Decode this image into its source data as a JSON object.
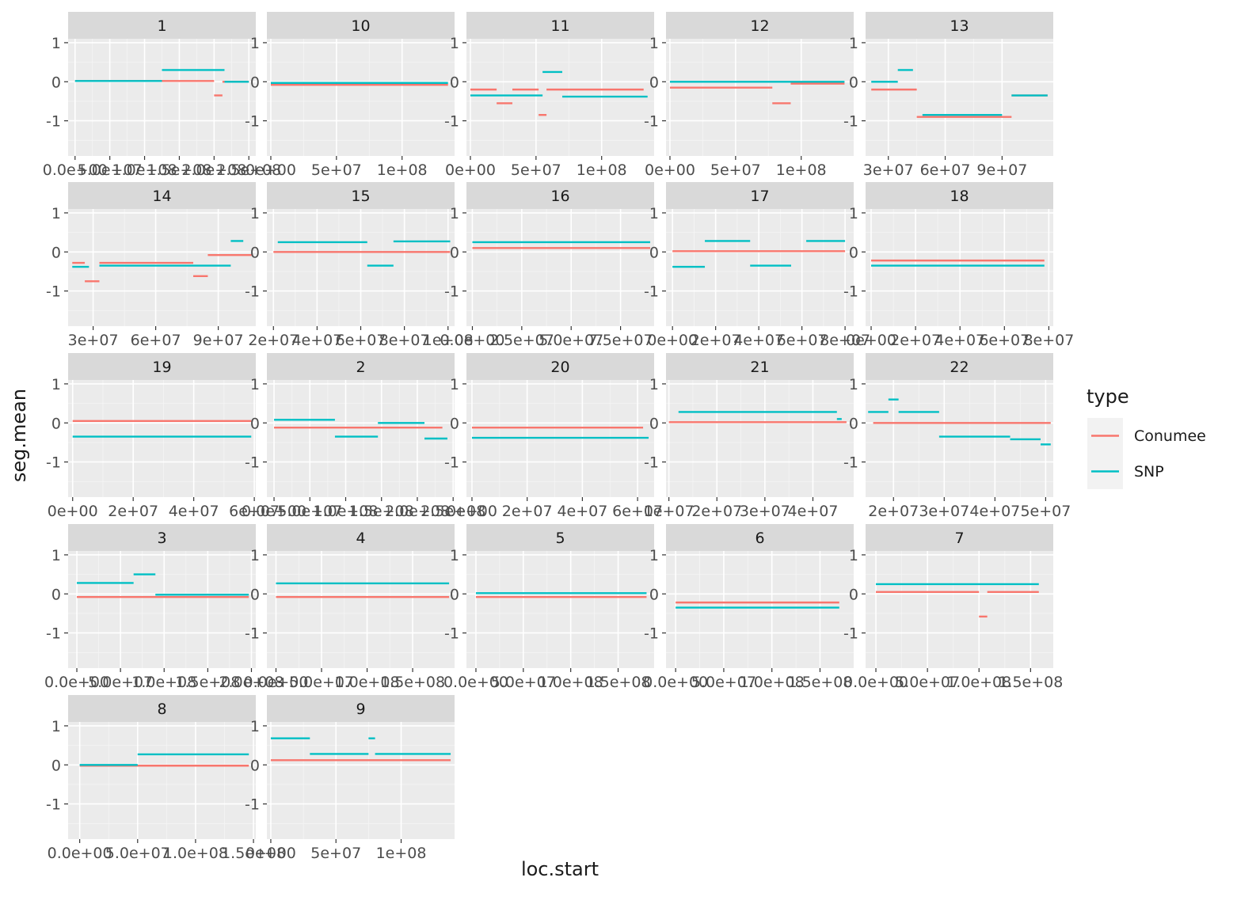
{
  "chart_data": {
    "type": "line",
    "xlabel": "loc.start",
    "ylabel": "seg.mean",
    "ylim": [
      -1.9,
      1.1
    ],
    "y_ticks": [
      1,
      0,
      -1
    ],
    "y_tick_labels": [
      "1",
      "0",
      "-1"
    ],
    "legend": {
      "title": "type",
      "placement": "right",
      "entries": [
        {
          "name": "Conumee",
          "color": "#F8766D"
        },
        {
          "name": "SNP",
          "color": "#00BFC4"
        }
      ]
    },
    "colors": {
      "Conumee": "#F8766D",
      "SNP": "#00BFC4",
      "panel_bg": "#EBEBEB",
      "strip_bg": "#D9D9D9"
    },
    "panels": [
      {
        "label": "1",
        "xlim": [
          -10000000.0,
          260000000.0
        ],
        "ticks": [
          0,
          50000000.0,
          100000000.0,
          150000000.0,
          200000000.0,
          250000000.0
        ],
        "tick_labels": [
          "0.0e+00",
          "5.0e+07",
          "1.0e+08",
          "1.5e+08",
          "2.0e+08",
          "2.5e+08"
        ],
        "series": {
          "Conumee": [
            [
              0,
              200000000.0,
              0.02
            ],
            [
              200000000.0,
              212000000.0,
              -0.35
            ],
            [
              212000000.0,
              250000000.0,
              0.0
            ]
          ],
          "SNP": [
            [
              0,
              125000000.0,
              0.02
            ],
            [
              125000000.0,
              215000000.0,
              0.3
            ],
            [
              215000000.0,
              250000000.0,
              0.0
            ]
          ]
        }
      },
      {
        "label": "10",
        "xlim": [
          -3000000.0,
          140000000.0
        ],
        "ticks": [
          0,
          50000000.0,
          100000000.0
        ],
        "tick_labels": [
          "0e+00",
          "5e+07",
          "1e+08"
        ],
        "series": {
          "Conumee": [
            [
              0,
              135000000.0,
              -0.08
            ]
          ],
          "SNP": [
            [
              0,
              135000000.0,
              -0.03
            ]
          ]
        }
      },
      {
        "label": "11",
        "xlim": [
          -3000000.0,
          140000000.0
        ],
        "ticks": [
          0,
          50000000.0,
          100000000.0
        ],
        "tick_labels": [
          "0e+00",
          "5e+07",
          "1e+08"
        ],
        "series": {
          "Conumee": [
            [
              0,
              20000000.0,
              -0.2
            ],
            [
              20000000.0,
              32000000.0,
              -0.55
            ],
            [
              32000000.0,
              52000000.0,
              -0.2
            ],
            [
              52000000.0,
              58000000.0,
              -0.85
            ],
            [
              58000000.0,
              132000000.0,
              -0.2
            ]
          ],
          "SNP": [
            [
              0,
              55000000.0,
              -0.35
            ],
            [
              55000000.0,
              70000000.0,
              0.25
            ],
            [
              70000000.0,
              135000000.0,
              -0.38
            ]
          ]
        }
      },
      {
        "label": "12",
        "xlim": [
          -3000000.0,
          140000000.0
        ],
        "ticks": [
          0,
          50000000.0,
          100000000.0
        ],
        "tick_labels": [
          "0e+00",
          "5e+07",
          "1e+08"
        ],
        "series": {
          "Conumee": [
            [
              0,
              78000000.0,
              -0.15
            ],
            [
              78000000.0,
              92000000.0,
              -0.55
            ],
            [
              92000000.0,
              133000000.0,
              -0.05
            ]
          ],
          "SNP": [
            [
              0,
              133000000.0,
              0.0
            ]
          ]
        }
      },
      {
        "label": "13",
        "xlim": [
          18000000.0,
          117000000.0
        ],
        "ticks": [
          30000000.0,
          60000000.0,
          90000000.0
        ],
        "tick_labels": [
          "3e+07",
          "6e+07",
          "9e+07"
        ],
        "series": {
          "Conumee": [
            [
              21000000.0,
              45000000.0,
              -0.2
            ],
            [
              45000000.0,
              95000000.0,
              -0.9
            ],
            [
              95000000.0,
              114000000.0,
              -0.35
            ]
          ],
          "SNP": [
            [
              21000000.0,
              35000000.0,
              0.0
            ],
            [
              35000000.0,
              43000000.0,
              0.3
            ],
            [
              48000000.0,
              90000000.0,
              -0.85
            ],
            [
              95000000.0,
              114000000.0,
              -0.35
            ]
          ]
        }
      },
      {
        "label": "14",
        "xlim": [
          18000000.0,
          108000000.0
        ],
        "ticks": [
          30000000.0,
          60000000.0,
          90000000.0
        ],
        "tick_labels": [
          "3e+07",
          "6e+07",
          "9e+07"
        ],
        "series": {
          "Conumee": [
            [
              20000000.0,
              26000000.0,
              -0.28
            ],
            [
              26000000.0,
              33000000.0,
              -0.75
            ],
            [
              33000000.0,
              78000000.0,
              -0.28
            ],
            [
              78000000.0,
              85000000.0,
              -0.62
            ],
            [
              85000000.0,
              106000000.0,
              -0.08
            ]
          ],
          "SNP": [
            [
              20000000.0,
              28000000.0,
              -0.38
            ],
            [
              33000000.0,
              96000000.0,
              -0.35
            ],
            [
              96000000.0,
              102000000.0,
              0.28
            ]
          ]
        }
      },
      {
        "label": "15",
        "xlim": [
          17000000.0,
          103000000.0
        ],
        "ticks": [
          20000000.0,
          40000000.0,
          60000000.0,
          80000000.0,
          100000000.0
        ],
        "tick_labels": [
          "2e+07",
          "4e+07",
          "6e+07",
          "8e+07",
          "1e+08"
        ],
        "series": {
          "Conumee": [
            [
              20000000.0,
              101000000.0,
              0.0
            ]
          ],
          "SNP": [
            [
              22000000.0,
              63000000.0,
              0.25
            ],
            [
              63000000.0,
              75000000.0,
              -0.35
            ],
            [
              75000000.0,
              101000000.0,
              0.27
            ]
          ]
        }
      },
      {
        "label": "16",
        "xlim": [
          -3000000.0,
          92000000.0
        ],
        "ticks": [
          0,
          25000000.0,
          50000000.0,
          75000000.0
        ],
        "tick_labels": [
          "0.0e+00",
          "2.5e+07",
          "5.0e+07",
          "7.5e+07"
        ],
        "series": {
          "Conumee": [
            [
              0,
              90000000.0,
              0.1
            ]
          ],
          "SNP": [
            [
              0,
              90000000.0,
              0.25
            ]
          ]
        }
      },
      {
        "label": "17",
        "xlim": [
          -3000000.0,
          84000000.0
        ],
        "ticks": [
          0,
          20000000.0,
          40000000.0,
          60000000.0,
          80000000.0
        ],
        "tick_labels": [
          "0e+00",
          "2e+07",
          "4e+07",
          "6e+07",
          "8e+07"
        ],
        "series": {
          "Conumee": [
            [
              0,
              80000000.0,
              0.02
            ]
          ],
          "SNP": [
            [
              0,
              15000000.0,
              -0.38
            ],
            [
              15000000.0,
              36000000.0,
              0.28
            ],
            [
              36000000.0,
              55000000.0,
              -0.35
            ],
            [
              62000000.0,
              80000000.0,
              0.28
            ]
          ]
        }
      },
      {
        "label": "18",
        "xlim": [
          -2500000.0,
          82000000.0
        ],
        "ticks": [
          0,
          20000000.0,
          40000000.0,
          60000000.0,
          80000000.0
        ],
        "tick_labels": [
          "0e+00",
          "2e+07",
          "4e+07",
          "6e+07",
          "8e+07"
        ],
        "series": {
          "Conumee": [
            [
              0,
              78000000.0,
              -0.22
            ]
          ],
          "SNP": [
            [
              0,
              78000000.0,
              -0.35
            ]
          ]
        }
      },
      {
        "label": "19",
        "xlim": [
          -1500000.0,
          60500000.0
        ],
        "ticks": [
          0,
          20000000.0,
          40000000.0,
          60000000.0
        ],
        "tick_labels": [
          "0e+00",
          "2e+07",
          "4e+07",
          "6e+07"
        ],
        "series": {
          "Conumee": [
            [
              0,
              59000000.0,
              0.05
            ]
          ],
          "SNP": [
            [
              0,
              59000000.0,
              -0.35
            ]
          ]
        }
      },
      {
        "label": "2",
        "xlim": [
          -10000000.0,
          252000000.0
        ],
        "ticks": [
          0,
          50000000.0,
          100000000.0,
          150000000.0,
          200000000.0,
          250000000.0
        ],
        "tick_labels": [
          "0.0e+00",
          "5.0e+07",
          "1.0e+08",
          "1.5e+08",
          "2.0e+08",
          "2.5e+08"
        ],
        "series": {
          "Conumee": [
            [
              0,
              235000000.0,
              -0.12
            ]
          ],
          "SNP": [
            [
              0,
              85000000.0,
              0.08
            ],
            [
              85000000.0,
              145000000.0,
              -0.35
            ],
            [
              145000000.0,
              210000000.0,
              0.0
            ],
            [
              210000000.0,
              242000000.0,
              -0.4
            ]
          ]
        }
      },
      {
        "label": "20",
        "xlim": [
          -2000000.0,
          66000000.0
        ],
        "ticks": [
          0,
          20000000.0,
          40000000.0,
          60000000.0
        ],
        "tick_labels": [
          "0e+00",
          "2e+07",
          "4e+07",
          "6e+07"
        ],
        "series": {
          "Conumee": [
            [
              0,
              62000000.0,
              -0.12
            ]
          ],
          "SNP": [
            [
              0,
              64000000.0,
              -0.38
            ]
          ]
        }
      },
      {
        "label": "21",
        "xlim": [
          9400000.0,
          48500000.0
        ],
        "ticks": [
          10000000.0,
          20000000.0,
          30000000.0,
          40000000.0
        ],
        "tick_labels": [
          "1e+07",
          "2e+07",
          "3e+07",
          "4e+07"
        ],
        "series": {
          "Conumee": [
            [
              10000000.0,
              47000000.0,
              0.02
            ]
          ],
          "SNP": [
            [
              12000000.0,
              45000000.0,
              0.28
            ],
            [
              45000000.0,
              46000000.0,
              0.1
            ]
          ]
        }
      },
      {
        "label": "22",
        "xlim": [
          14500000.0,
          51500000.0
        ],
        "ticks": [
          20000000.0,
          30000000.0,
          40000000.0,
          50000000.0
        ],
        "tick_labels": [
          "2e+07",
          "3e+07",
          "4e+07",
          "5e+07"
        ],
        "series": {
          "Conumee": [
            [
              16000000.0,
              51000000.0,
              0.0
            ]
          ],
          "SNP": [
            [
              15000000.0,
              19000000.0,
              0.28
            ],
            [
              19000000.0,
              21000000.0,
              0.6
            ],
            [
              21000000.0,
              29000000.0,
              0.28
            ],
            [
              29000000.0,
              43000000.0,
              -0.35
            ],
            [
              43000000.0,
              49000000.0,
              -0.42
            ],
            [
              49000000.0,
              51000000.0,
              -0.55
            ]
          ]
        }
      },
      {
        "label": "3",
        "xlim": [
          -10000000.0,
          205000000.0
        ],
        "ticks": [
          0,
          50000000.0,
          100000000.0,
          150000000.0,
          200000000.0
        ],
        "tick_labels": [
          "0.0e+00",
          "5.0e+07",
          "1.0e+08",
          "1.5e+08",
          "2.0e+08"
        ],
        "series": {
          "Conumee": [
            [
              0,
              197000000.0,
              -0.08
            ]
          ],
          "SNP": [
            [
              0,
              65000000.0,
              0.28
            ],
            [
              65000000.0,
              90000000.0,
              0.5
            ],
            [
              90000000.0,
              197000000.0,
              -0.02
            ]
          ]
        }
      },
      {
        "label": "4",
        "xlim": [
          -10000000.0,
          196000000.0
        ],
        "ticks": [
          0,
          50000000.0,
          100000000.0,
          150000000.0
        ],
        "tick_labels": [
          "0.0e+00",
          "5.0e+07",
          "1.0e+08",
          "1.5e+08"
        ],
        "series": {
          "Conumee": [
            [
              0,
              190000000.0,
              -0.08
            ]
          ],
          "SNP": [
            [
              0,
              190000000.0,
              0.27
            ]
          ]
        }
      },
      {
        "label": "5",
        "xlim": [
          -10000000.0,
          188000000.0
        ],
        "ticks": [
          0,
          50000000.0,
          100000000.0,
          150000000.0
        ],
        "tick_labels": [
          "0.0e+00",
          "5.0e+07",
          "1.0e+08",
          "1.5e+08"
        ],
        "series": {
          "Conumee": [
            [
              0,
              180000000.0,
              -0.08
            ]
          ],
          "SNP": [
            [
              0,
              180000000.0,
              0.02
            ]
          ]
        }
      },
      {
        "label": "6",
        "xlim": [
          -10000000.0,
          185000000.0
        ],
        "ticks": [
          0,
          50000000.0,
          100000000.0,
          150000000.0
        ],
        "tick_labels": [
          "0.0e+00",
          "5.0e+07",
          "1.0e+08",
          "1.5e+08"
        ],
        "series": {
          "Conumee": [
            [
              0,
              170000000.0,
              -0.22
            ]
          ],
          "SNP": [
            [
              0,
              170000000.0,
              -0.35
            ]
          ]
        }
      },
      {
        "label": "7",
        "xlim": [
          -10000000.0,
          172000000.0
        ],
        "ticks": [
          0,
          50000000.0,
          100000000.0,
          150000000.0
        ],
        "tick_labels": [
          "0.0e+00",
          "5.0e+07",
          "1.0e+08",
          "1.5e+08"
        ],
        "series": {
          "Conumee": [
            [
              0,
              100000000.0,
              0.05
            ],
            [
              100000000.0,
              108000000.0,
              -0.58
            ],
            [
              108000000.0,
              158000000.0,
              0.05
            ]
          ],
          "SNP": [
            [
              0,
              158000000.0,
              0.25
            ]
          ]
        }
      },
      {
        "label": "8",
        "xlim": [
          -10000000.0,
          152000000.0
        ],
        "ticks": [
          0,
          50000000.0,
          100000000.0,
          150000000.0
        ],
        "tick_labels": [
          "0.0e+00",
          "5.0e+07",
          "1.0e+08",
          "1.5e+08"
        ],
        "series": {
          "Conumee": [
            [
              0,
              146000000.0,
              -0.02
            ]
          ],
          "SNP": [
            [
              0,
              50000000.0,
              0.0
            ],
            [
              50000000.0,
              146000000.0,
              0.27
            ]
          ]
        }
      },
      {
        "label": "9",
        "xlim": [
          -3000000.0,
          141000000.0
        ],
        "ticks": [
          0,
          50000000.0,
          100000000.0
        ],
        "tick_labels": [
          "0e+00",
          "5e+07",
          "1e+08"
        ],
        "series": {
          "Conumee": [
            [
              0,
              138000000.0,
              0.12
            ]
          ],
          "SNP": [
            [
              0,
              30000000.0,
              0.68
            ],
            [
              30000000.0,
              75000000.0,
              0.28
            ],
            [
              75000000.0,
              80000000.0,
              0.68
            ],
            [
              80000000.0,
              138000000.0,
              0.28
            ]
          ]
        }
      }
    ]
  }
}
